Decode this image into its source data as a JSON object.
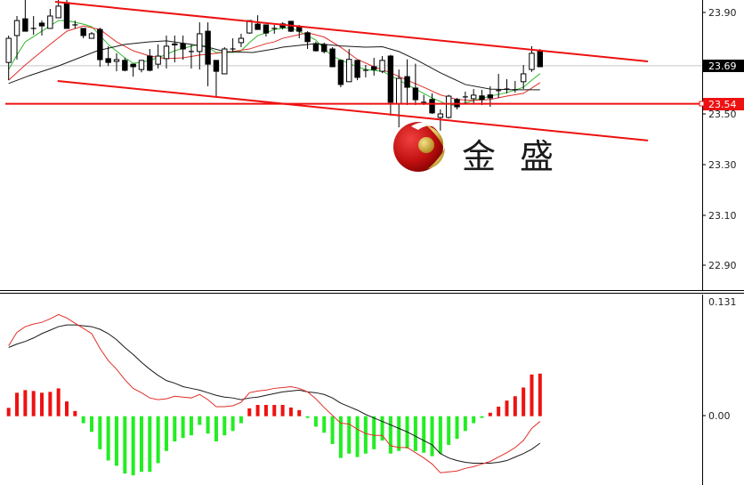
{
  "chart_data": [
    {
      "type": "candlestick",
      "panel": "price",
      "y_ticks": [
        "23.90",
        "23.50",
        "23.30",
        "23.10",
        "22.90"
      ],
      "ylim": [
        22.86,
        23.95
      ],
      "current_price_label": "23.69",
      "current_price": 23.69,
      "hline_label": "23.54",
      "hline_price": 23.54,
      "candles_ohlc": [
        [
          23.703,
          23.809,
          23.633,
          23.798
        ],
        [
          23.809,
          23.886,
          23.714,
          23.868
        ],
        [
          23.875,
          23.95,
          23.826,
          23.826
        ],
        [
          23.837,
          23.886,
          23.812,
          23.837
        ],
        [
          23.858,
          23.868,
          23.809,
          23.847
        ],
        [
          23.837,
          23.914,
          23.837,
          23.886
        ],
        [
          23.879,
          23.95,
          23.879,
          23.925
        ],
        [
          23.939,
          23.95,
          23.837,
          23.837
        ],
        [
          23.851,
          23.868,
          23.837,
          23.851
        ],
        [
          23.837,
          23.837,
          23.798,
          23.809
        ],
        [
          23.798,
          23.823,
          23.798,
          23.816
        ],
        [
          23.833,
          23.84,
          23.686,
          23.714
        ],
        [
          23.718,
          23.767,
          23.689,
          23.703
        ],
        [
          23.707,
          23.739,
          23.668,
          23.714
        ],
        [
          23.711,
          23.721,
          23.668,
          23.672
        ],
        [
          23.696,
          23.696,
          23.647,
          23.686
        ],
        [
          23.675,
          23.711,
          23.664,
          23.711
        ],
        [
          23.728,
          23.756,
          23.668,
          23.672
        ],
        [
          23.696,
          23.774,
          23.679,
          23.728
        ],
        [
          23.718,
          23.809,
          23.679,
          23.767
        ],
        [
          23.776,
          23.809,
          23.703,
          23.772
        ],
        [
          23.777,
          23.809,
          23.714,
          23.756
        ],
        [
          23.746,
          23.774,
          23.679,
          23.746
        ],
        [
          23.746,
          23.861,
          23.675,
          23.816
        ],
        [
          23.826,
          23.861,
          23.609,
          23.696
        ],
        [
          23.711,
          23.711,
          23.57,
          23.668
        ],
        [
          23.658,
          23.763,
          23.658,
          23.756
        ],
        [
          23.756,
          23.798,
          23.746,
          23.756
        ],
        [
          23.781,
          23.816,
          23.763,
          23.798
        ],
        [
          23.819,
          23.868,
          23.816,
          23.868
        ],
        [
          23.854,
          23.889,
          23.833,
          23.833
        ],
        [
          23.851,
          23.851,
          23.805,
          23.819
        ],
        [
          23.837,
          23.851,
          23.816,
          23.837
        ],
        [
          23.855,
          23.861,
          23.833,
          23.841
        ],
        [
          23.865,
          23.867,
          23.823,
          23.826
        ],
        [
          23.844,
          23.851,
          23.798,
          23.826
        ],
        [
          23.82,
          23.826,
          23.756,
          23.785
        ],
        [
          23.777,
          23.785,
          23.746,
          23.749
        ],
        [
          23.774,
          23.781,
          23.739,
          23.746
        ],
        [
          23.756,
          23.763,
          23.686,
          23.686
        ],
        [
          23.711,
          23.715,
          23.605,
          23.616
        ],
        [
          23.627,
          23.756,
          23.627,
          23.715
        ],
        [
          23.711,
          23.711,
          23.633,
          23.644
        ],
        [
          23.672,
          23.693,
          23.644,
          23.672
        ],
        [
          23.686,
          23.721,
          23.651,
          23.675
        ],
        [
          23.668,
          23.728,
          23.661,
          23.711
        ],
        [
          23.728,
          23.733,
          23.493,
          23.546
        ],
        [
          23.539,
          23.675,
          23.447,
          23.64
        ],
        [
          23.647,
          23.715,
          23.535,
          23.605
        ],
        [
          23.602,
          23.698,
          23.535,
          23.556
        ],
        [
          23.546,
          23.575,
          23.535,
          23.546
        ],
        [
          23.557,
          23.581,
          23.5,
          23.504
        ],
        [
          23.486,
          23.518,
          23.433,
          23.5
        ],
        [
          23.486,
          23.575,
          23.482,
          23.57
        ],
        [
          23.557,
          23.563,
          23.518,
          23.528
        ],
        [
          23.567,
          23.588,
          23.539,
          23.567
        ],
        [
          23.56,
          23.598,
          23.539,
          23.574
        ],
        [
          23.571,
          23.595,
          23.535,
          23.557
        ],
        [
          23.575,
          23.609,
          23.528,
          23.563
        ],
        [
          23.592,
          23.658,
          23.563,
          23.592
        ],
        [
          23.598,
          23.637,
          23.581,
          23.598
        ],
        [
          23.595,
          23.63,
          23.584,
          23.595
        ],
        [
          23.627,
          23.693,
          23.598,
          23.658
        ],
        [
          23.675,
          23.767,
          23.666,
          23.739
        ],
        [
          23.75,
          23.756,
          23.686,
          23.686
        ]
      ],
      "moving_averages": [
        {
          "color": "#2db82d",
          "points": [
            [
              0,
              23.675
            ],
            [
              1,
              23.732
            ],
            [
              2,
              23.784
            ],
            [
              4,
              23.826
            ],
            [
              6,
              23.868
            ],
            [
              7,
              23.868
            ],
            [
              9,
              23.854
            ],
            [
              10,
              23.844
            ],
            [
              12,
              23.774
            ],
            [
              14,
              23.721
            ],
            [
              15,
              23.7
            ],
            [
              16,
              23.703
            ],
            [
              18,
              23.721
            ],
            [
              20,
              23.749
            ],
            [
              22,
              23.767
            ],
            [
              23,
              23.774
            ],
            [
              24,
              23.763
            ],
            [
              25,
              23.742
            ],
            [
              27,
              23.742
            ],
            [
              28,
              23.749
            ],
            [
              29,
              23.781
            ],
            [
              30,
              23.809
            ],
            [
              31,
              23.819
            ],
            [
              32,
              23.833
            ],
            [
              33,
              23.838
            ],
            [
              34,
              23.84
            ],
            [
              36,
              23.809
            ],
            [
              37,
              23.791
            ],
            [
              38,
              23.756
            ],
            [
              39,
              23.728
            ],
            [
              41,
              23.698
            ],
            [
              43,
              23.675
            ],
            [
              45,
              23.668
            ],
            [
              47,
              23.633
            ],
            [
              49,
              23.598
            ],
            [
              51,
              23.563
            ],
            [
              53,
              23.535
            ],
            [
              54,
              23.535
            ],
            [
              56,
              23.553
            ],
            [
              58,
              23.57
            ],
            [
              60,
              23.584
            ],
            [
              62,
              23.605
            ],
            [
              63,
              23.633
            ],
            [
              64,
              23.659
            ]
          ]
        },
        {
          "color": "#e0302a",
          "points": [
            [
              0,
              23.633
            ],
            [
              2,
              23.693
            ],
            [
              5,
              23.774
            ],
            [
              7,
              23.826
            ],
            [
              9,
              23.847
            ],
            [
              11,
              23.833
            ],
            [
              13,
              23.784
            ],
            [
              15,
              23.749
            ],
            [
              17,
              23.728
            ],
            [
              19,
              23.718
            ],
            [
              21,
              23.721
            ],
            [
              23,
              23.732
            ],
            [
              25,
              23.739
            ],
            [
              27,
              23.746
            ],
            [
              29,
              23.756
            ],
            [
              31,
              23.777
            ],
            [
              32,
              23.784
            ],
            [
              33,
              23.798
            ],
            [
              36,
              23.82
            ],
            [
              38,
              23.803
            ],
            [
              40,
              23.763
            ],
            [
              42,
              23.715
            ],
            [
              44,
              23.686
            ],
            [
              46,
              23.662
            ],
            [
              48,
              23.633
            ],
            [
              50,
              23.605
            ],
            [
              52,
              23.575
            ],
            [
              54,
              23.557
            ],
            [
              56,
              23.553
            ],
            [
              58,
              23.557
            ],
            [
              60,
              23.57
            ],
            [
              62,
              23.581
            ],
            [
              64,
              23.623
            ]
          ]
        },
        {
          "color": "#1a1a1a",
          "points": [
            [
              0,
              23.62
            ],
            [
              2.5,
              23.651
            ],
            [
              6,
              23.689
            ],
            [
              10.7,
              23.749
            ],
            [
              14,
              23.774
            ],
            [
              17,
              23.784
            ],
            [
              19,
              23.788
            ],
            [
              22,
              23.774
            ],
            [
              24,
              23.763
            ],
            [
              26,
              23.746
            ],
            [
              29.4,
              23.742
            ],
            [
              32,
              23.756
            ],
            [
              33,
              23.763
            ],
            [
              37,
              23.777
            ],
            [
              40,
              23.768
            ],
            [
              43,
              23.763
            ],
            [
              45,
              23.765
            ],
            [
              47,
              23.746
            ],
            [
              49,
              23.715
            ],
            [
              52,
              23.662
            ],
            [
              55,
              23.616
            ],
            [
              58,
              23.598
            ],
            [
              61,
              23.595
            ],
            [
              64,
              23.595
            ]
          ]
        }
      ],
      "trendlines": [
        {
          "name": "upper-channel",
          "from": [
            5.6,
            23.942
          ],
          "to": [
            77,
            23.707
          ],
          "color": "#ee1111"
        },
        {
          "name": "lower-channel",
          "from": [
            5.9,
            23.63
          ],
          "to": [
            77,
            23.395
          ],
          "color": "#ee1111"
        }
      ]
    },
    {
      "type": "bar+line",
      "panel": "macd",
      "y_ticks": [
        "0.131",
        "0.00"
      ],
      "ylim": [
        -0.076,
        0.131
      ],
      "histogram": [
        0.0096,
        0.027,
        0.03,
        0.029,
        0.027,
        0.028,
        0.032,
        0.017,
        0.006,
        -0.008,
        -0.018,
        -0.038,
        -0.051,
        -0.057,
        -0.066,
        -0.068,
        -0.064,
        -0.064,
        -0.054,
        -0.04,
        -0.029,
        -0.025,
        -0.022,
        -0.01,
        -0.02,
        -0.029,
        -0.022,
        -0.017,
        -0.008,
        0.009,
        0.013,
        0.013,
        0.013,
        0.013,
        0.01,
        0.007,
        -0.002,
        -0.012,
        -0.019,
        -0.032,
        -0.048,
        -0.043,
        -0.047,
        -0.043,
        -0.038,
        -0.028,
        -0.043,
        -0.04,
        -0.037,
        -0.04,
        -0.042,
        -0.046,
        -0.043,
        -0.033,
        -0.026,
        -0.017,
        -0.008,
        -0.002,
        0.004,
        0.011,
        0.018,
        0.023,
        0.033,
        0.048,
        0.049
      ],
      "positive_color": "#ee1111",
      "negative_color": "#22ee22",
      "macd_line": {
        "color": "#e0302a",
        "values": [
          0.081,
          0.0965,
          0.103,
          0.106,
          0.108,
          0.112,
          0.117,
          0.113,
          0.107,
          0.101,
          0.095,
          0.078,
          0.064,
          0.054,
          0.042,
          0.032,
          0.027,
          0.021,
          0.019,
          0.02,
          0.023,
          0.022,
          0.021,
          0.025,
          0.019,
          0.011,
          0.011,
          0.012,
          0.016,
          0.027,
          0.029,
          0.03,
          0.032,
          0.033,
          0.034,
          0.032,
          0.028,
          0.02,
          0.01,
          0.001,
          -0.008,
          -0.009,
          -0.015,
          -0.02,
          -0.022,
          -0.022,
          -0.034,
          -0.036,
          -0.036,
          -0.042,
          -0.048,
          -0.055,
          -0.065,
          -0.064,
          -0.063,
          -0.06,
          -0.058,
          -0.055,
          -0.052,
          -0.047,
          -0.042,
          -0.036,
          -0.028,
          -0.014,
          -0.006
        ]
      },
      "signal_line": {
        "color": "#1a1a1a",
        "values": [
          0.079,
          0.083,
          0.086,
          0.09,
          0.095,
          0.099,
          0.103,
          0.105,
          0.105,
          0.104,
          0.103,
          0.1,
          0.095,
          0.088,
          0.079,
          0.071,
          0.062,
          0.054,
          0.047,
          0.041,
          0.038,
          0.034,
          0.032,
          0.03,
          0.027,
          0.024,
          0.022,
          0.021,
          0.019,
          0.021,
          0.022,
          0.024,
          0.026,
          0.028,
          0.029,
          0.03,
          0.028,
          0.027,
          0.025,
          0.021,
          0.015,
          0.011,
          0.007,
          0.002,
          -0.002,
          -0.006,
          -0.01,
          -0.014,
          -0.018,
          -0.023,
          -0.028,
          -0.033,
          -0.043,
          -0.048,
          -0.051,
          -0.053,
          -0.054,
          -0.054,
          -0.054,
          -0.053,
          -0.051,
          -0.047,
          -0.043,
          -0.038,
          -0.031
        ]
      }
    }
  ],
  "logo": {
    "text": "金 盛",
    "chars": [
      "金",
      "盛"
    ]
  }
}
